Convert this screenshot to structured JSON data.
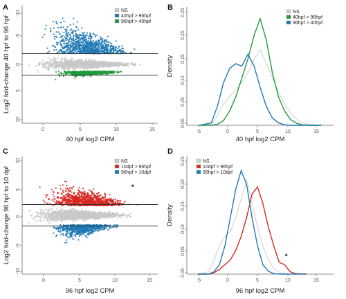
{
  "colors": {
    "ns": "#c8c8c8",
    "blue": "#1f78b4",
    "green": "#1f9a3c",
    "red": "#d7261e",
    "ns_line": "#d0d0d0"
  },
  "chart_data": [
    {
      "panel": "A",
      "type": "scatter",
      "xlabel": "40 hpf log2 CPM",
      "ylabel": "Log2 fold-change 40 hpf to 96 hpf",
      "xlim": [
        -5,
        15
      ],
      "ylim": [
        -11,
        11
      ],
      "xticks": [
        "0",
        "5",
        "10",
        "15"
      ],
      "yticks": [
        "-10",
        "-5",
        "0",
        "5",
        "10"
      ],
      "hlines": [
        2,
        -2
      ],
      "grid": false,
      "legend_position": "top-right",
      "series": [
        {
          "name": "NS",
          "color": "#c8c8c8",
          "x_range": [
            -3,
            12
          ],
          "y_range": [
            -1.5,
            1.5
          ]
        },
        {
          "name": "40hpf > 96hpf",
          "color": "#1f78b4",
          "x_range": [
            -2,
            11
          ],
          "y_range": [
            2,
            9
          ]
        },
        {
          "name": "96hpf > 40hpf",
          "color": "#1f9a3c",
          "x_range": [
            0,
            10
          ],
          "y_range": [
            -2.5,
            -1.3
          ]
        }
      ]
    },
    {
      "panel": "B",
      "type": "line",
      "xlabel": "40 hpf log2 CPM",
      "ylabel": "Density",
      "xlim": [
        -7,
        17
      ],
      "ylim": [
        0,
        0.25
      ],
      "xticks": [
        "-5",
        "0",
        "5",
        "10",
        "15"
      ],
      "yticks": [
        "0.00",
        "0.05",
        "0.10",
        "0.15",
        "0.20",
        "0.25"
      ],
      "legend_position": "top-right",
      "series": [
        {
          "name": "NS",
          "color": "#d0d0d0",
          "x": [
            -5,
            -3,
            -2,
            -1,
            0,
            1,
            2,
            3,
            4,
            5,
            6,
            7,
            8,
            9,
            10,
            11,
            12,
            13,
            15
          ],
          "y": [
            0,
            0.002,
            0.02,
            0.045,
            0.06,
            0.075,
            0.09,
            0.11,
            0.14,
            0.16,
            0.13,
            0.1,
            0.07,
            0.045,
            0.025,
            0.012,
            0.005,
            0.002,
            0
          ]
        },
        {
          "name": "40hpf > 96hpf",
          "color": "#1f9a3c",
          "x": [
            -5,
            -3,
            -2,
            -1,
            0,
            1,
            2,
            3,
            4,
            5,
            6,
            7,
            8,
            9,
            10,
            11,
            12,
            13,
            15
          ],
          "y": [
            0,
            0.0,
            0.002,
            0.01,
            0.03,
            0.06,
            0.1,
            0.14,
            0.19,
            0.225,
            0.18,
            0.11,
            0.06,
            0.03,
            0.012,
            0.004,
            0.001,
            0,
            0
          ]
        },
        {
          "name": "96hpf > 40hpf",
          "color": "#1f78b4",
          "x": [
            -5,
            -3,
            -2,
            -1,
            0,
            1,
            2,
            3,
            4,
            5,
            6,
            7,
            8,
            9,
            10,
            11,
            12,
            13,
            15
          ],
          "y": [
            0,
            0.005,
            0.04,
            0.09,
            0.12,
            0.13,
            0.125,
            0.15,
            0.125,
            0.08,
            0.04,
            0.015,
            0.005,
            0.001,
            0,
            0,
            0,
            0,
            0
          ]
        }
      ]
    },
    {
      "panel": "C",
      "type": "scatter",
      "xlabel": "96 hpf log2 CPM",
      "ylabel": "Log2 fold-change 96 hpf to 10 dpf",
      "xlim": [
        -4,
        16
      ],
      "ylim": [
        -11,
        11
      ],
      "xticks": [
        "0",
        "5",
        "10",
        "15"
      ],
      "yticks": [
        "-10",
        "-5",
        "0",
        "5",
        "10"
      ],
      "hlines": [
        2,
        -2
      ],
      "legend_position": "top-right",
      "annotation": "*",
      "annotation_xy": [
        12.3,
        4.6
      ],
      "series": [
        {
          "name": "NS",
          "color": "#c8c8c8",
          "x_range": [
            -3,
            12
          ],
          "y_range": [
            -1.8,
            1.8
          ]
        },
        {
          "name": "10dpf > 96hpf",
          "color": "#d7261e",
          "x_range": [
            -1,
            12
          ],
          "y_range": [
            1.8,
            6.5
          ]
        },
        {
          "name": "96hpf > 10dpf",
          "color": "#1f78b4",
          "x_range": [
            0,
            10
          ],
          "y_range": [
            -5,
            -1.8
          ]
        }
      ]
    },
    {
      "panel": "D",
      "type": "line",
      "xlabel": "96 hpf log2 CPM",
      "ylabel": "Density",
      "xlim": [
        -7,
        20
      ],
      "ylim": [
        0,
        0.25
      ],
      "xticks": [
        "-5",
        "0",
        "5",
        "10",
        "15"
      ],
      "yticks": [
        "0.00",
        "0.05",
        "0.10",
        "0.15",
        "0.20",
        "0.25"
      ],
      "legend_position": "top-left",
      "annotation": "*",
      "annotation_xy": [
        11.3,
        0.03
      ],
      "series": [
        {
          "name": "NS",
          "color": "#d0d0d0",
          "x": [
            -5,
            -3,
            -2,
            -1,
            0,
            1,
            2,
            3,
            4,
            5,
            6,
            7,
            8,
            9,
            10,
            11,
            12,
            13,
            15
          ],
          "y": [
            0,
            0.005,
            0.03,
            0.06,
            0.08,
            0.09,
            0.12,
            0.16,
            0.2,
            0.15,
            0.1,
            0.06,
            0.03,
            0.012,
            0.004,
            0.001,
            0,
            0,
            0
          ]
        },
        {
          "name": "10dpf > 96hpf",
          "color": "#d7261e",
          "x": [
            -5,
            -3,
            -2,
            -1,
            0,
            1,
            2,
            3,
            4,
            5,
            6,
            7,
            8,
            9,
            10,
            11,
            12,
            13,
            15
          ],
          "y": [
            0,
            0.0,
            0.003,
            0.01,
            0.02,
            0.03,
            0.05,
            0.08,
            0.12,
            0.17,
            0.185,
            0.15,
            0.1,
            0.06,
            0.025,
            0.02,
            0.005,
            0.001,
            0
          ]
        },
        {
          "name": "96hpf > 10dpf",
          "color": "#1f78b4",
          "x": [
            -5,
            -3,
            -2,
            -1,
            0,
            1,
            2,
            3,
            4,
            5,
            6,
            7,
            8,
            9,
            10,
            11,
            12,
            13,
            15
          ],
          "y": [
            0,
            0.0,
            0.005,
            0.02,
            0.06,
            0.12,
            0.18,
            0.22,
            0.19,
            0.12,
            0.06,
            0.02,
            0.006,
            0.001,
            0,
            0,
            0,
            0,
            0
          ]
        }
      ]
    }
  ]
}
